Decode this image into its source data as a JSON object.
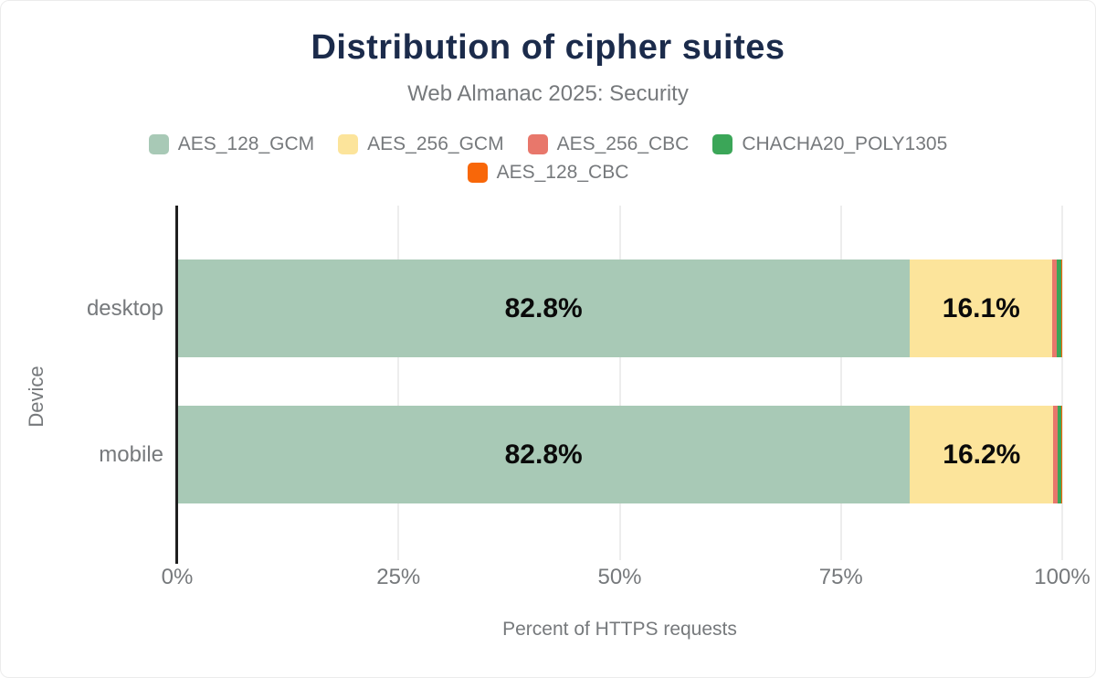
{
  "colors": {
    "title": "#1b2b4b",
    "muted_text": "#76797c",
    "axis_line": "#1f1f1f",
    "gridline": "#ededed",
    "bar_label": "#0a0a0a",
    "background": "#ffffff"
  },
  "chart_data": {
    "type": "bar",
    "orientation": "horizontal",
    "stacked": true,
    "title": "Distribution of cipher suites",
    "subtitle": "Web Almanac 2025: Security",
    "xlabel": "Percent of HTTPS requests",
    "ylabel": "Device",
    "categories": [
      "desktop",
      "mobile"
    ],
    "series": [
      {
        "name": "AES_128_GCM",
        "color": "#a8c9b6",
        "values": [
          82.8,
          82.8
        ],
        "labels": [
          "82.8%",
          "82.8%"
        ]
      },
      {
        "name": "AES_256_GCM",
        "color": "#fce49b",
        "values": [
          16.1,
          16.2
        ],
        "labels": [
          "16.1%",
          "16.2%"
        ]
      },
      {
        "name": "AES_256_CBC",
        "color": "#e8776b",
        "values": [
          0.5,
          0.5
        ],
        "labels": [
          "",
          ""
        ]
      },
      {
        "name": "CHACHA20_POLY1305",
        "color": "#3ba658",
        "values": [
          0.5,
          0.4
        ],
        "labels": [
          "",
          ""
        ]
      },
      {
        "name": "AES_128_CBC",
        "color": "#f86709",
        "values": [
          0.1,
          0.1
        ],
        "labels": [
          "",
          ""
        ]
      }
    ],
    "xlim": [
      0,
      100
    ],
    "x_ticks": [
      {
        "value": 0,
        "label": "0%"
      },
      {
        "value": 25,
        "label": "25%"
      },
      {
        "value": 50,
        "label": "50%"
      },
      {
        "value": 75,
        "label": "75%"
      },
      {
        "value": 100,
        "label": "100%"
      }
    ],
    "grid": true,
    "legend_position": "top",
    "legend_rows": [
      [
        "AES_128_GCM",
        "AES_256_GCM",
        "AES_256_CBC",
        "CHACHA20_POLY1305"
      ],
      [
        "AES_128_CBC"
      ]
    ]
  }
}
